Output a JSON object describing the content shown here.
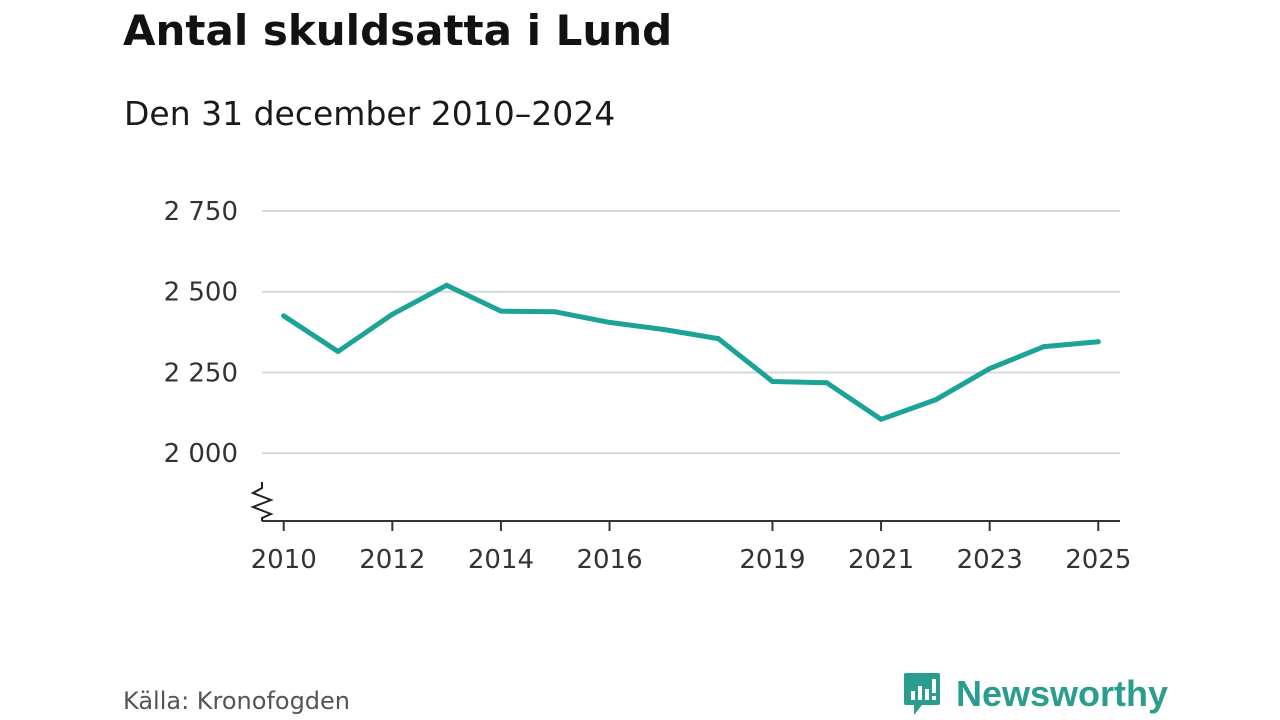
{
  "title": "Antal skuldsatta i Lund",
  "subtitle": "Den 31 december 2010–2024",
  "source": "Källa: Kronofogden",
  "brand": "Newsworthy",
  "colors": {
    "line": "#1aa396",
    "grid": "#d9d9d9",
    "axis": "#333333",
    "brand": "#2a9d8f"
  },
  "chart_data": {
    "type": "line",
    "title": "Antal skuldsatta i Lund",
    "subtitle": "Den 31 december 2010–2024",
    "xlabel": "",
    "ylabel": "",
    "x": [
      2010,
      2011,
      2012,
      2013,
      2014,
      2015,
      2016,
      2017,
      2018,
      2019,
      2020,
      2021,
      2022,
      2023,
      2024,
      2025
    ],
    "series": [
      {
        "name": "Antal skuldsatta",
        "values": [
          2425,
          2315,
          2430,
          2520,
          2440,
          2438,
          2405,
          2383,
          2355,
          2222,
          2218,
          2105,
          2165,
          2262,
          2330,
          2345
        ]
      }
    ],
    "yticks": [
      2000,
      2250,
      2500,
      2750
    ],
    "ytick_labels": [
      "2 000",
      "2 250",
      "2 500",
      "2 750"
    ],
    "xticks": [
      2010,
      2012,
      2014,
      2016,
      2019,
      2021,
      2023,
      2025
    ],
    "xtick_labels": [
      "2010",
      "2012",
      "2014",
      "2016",
      "2019",
      "2021",
      "2023",
      "2025"
    ],
    "ylim": [
      1790,
      2750
    ],
    "xlim": [
      2009.6,
      2025.4
    ],
    "axis_break": true,
    "grid": true
  }
}
